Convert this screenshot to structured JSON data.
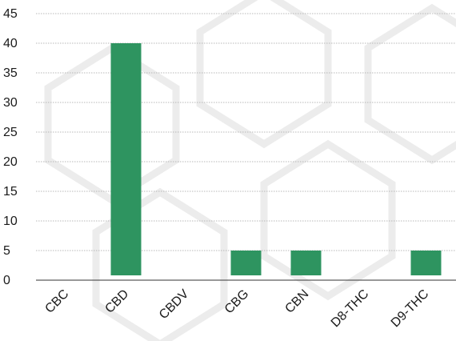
{
  "chart_data": {
    "type": "bar",
    "title": "",
    "xlabel": "",
    "ylabel": "",
    "categories": [
      "CBC",
      "CBD",
      "CBDV",
      "CBG",
      "CBN",
      "D8-THC",
      "D9-THC"
    ],
    "values": [
      0,
      40,
      0,
      5,
      5,
      0,
      5
    ],
    "ylim": [
      0,
      45
    ],
    "yticks": [
      "0",
      "5",
      "10",
      "15",
      "20",
      "25",
      "30",
      "35",
      "40",
      "45"
    ],
    "grid": true,
    "legend": "none",
    "bar_color": "#2e9460",
    "grid_color": "#b8b8b8"
  }
}
